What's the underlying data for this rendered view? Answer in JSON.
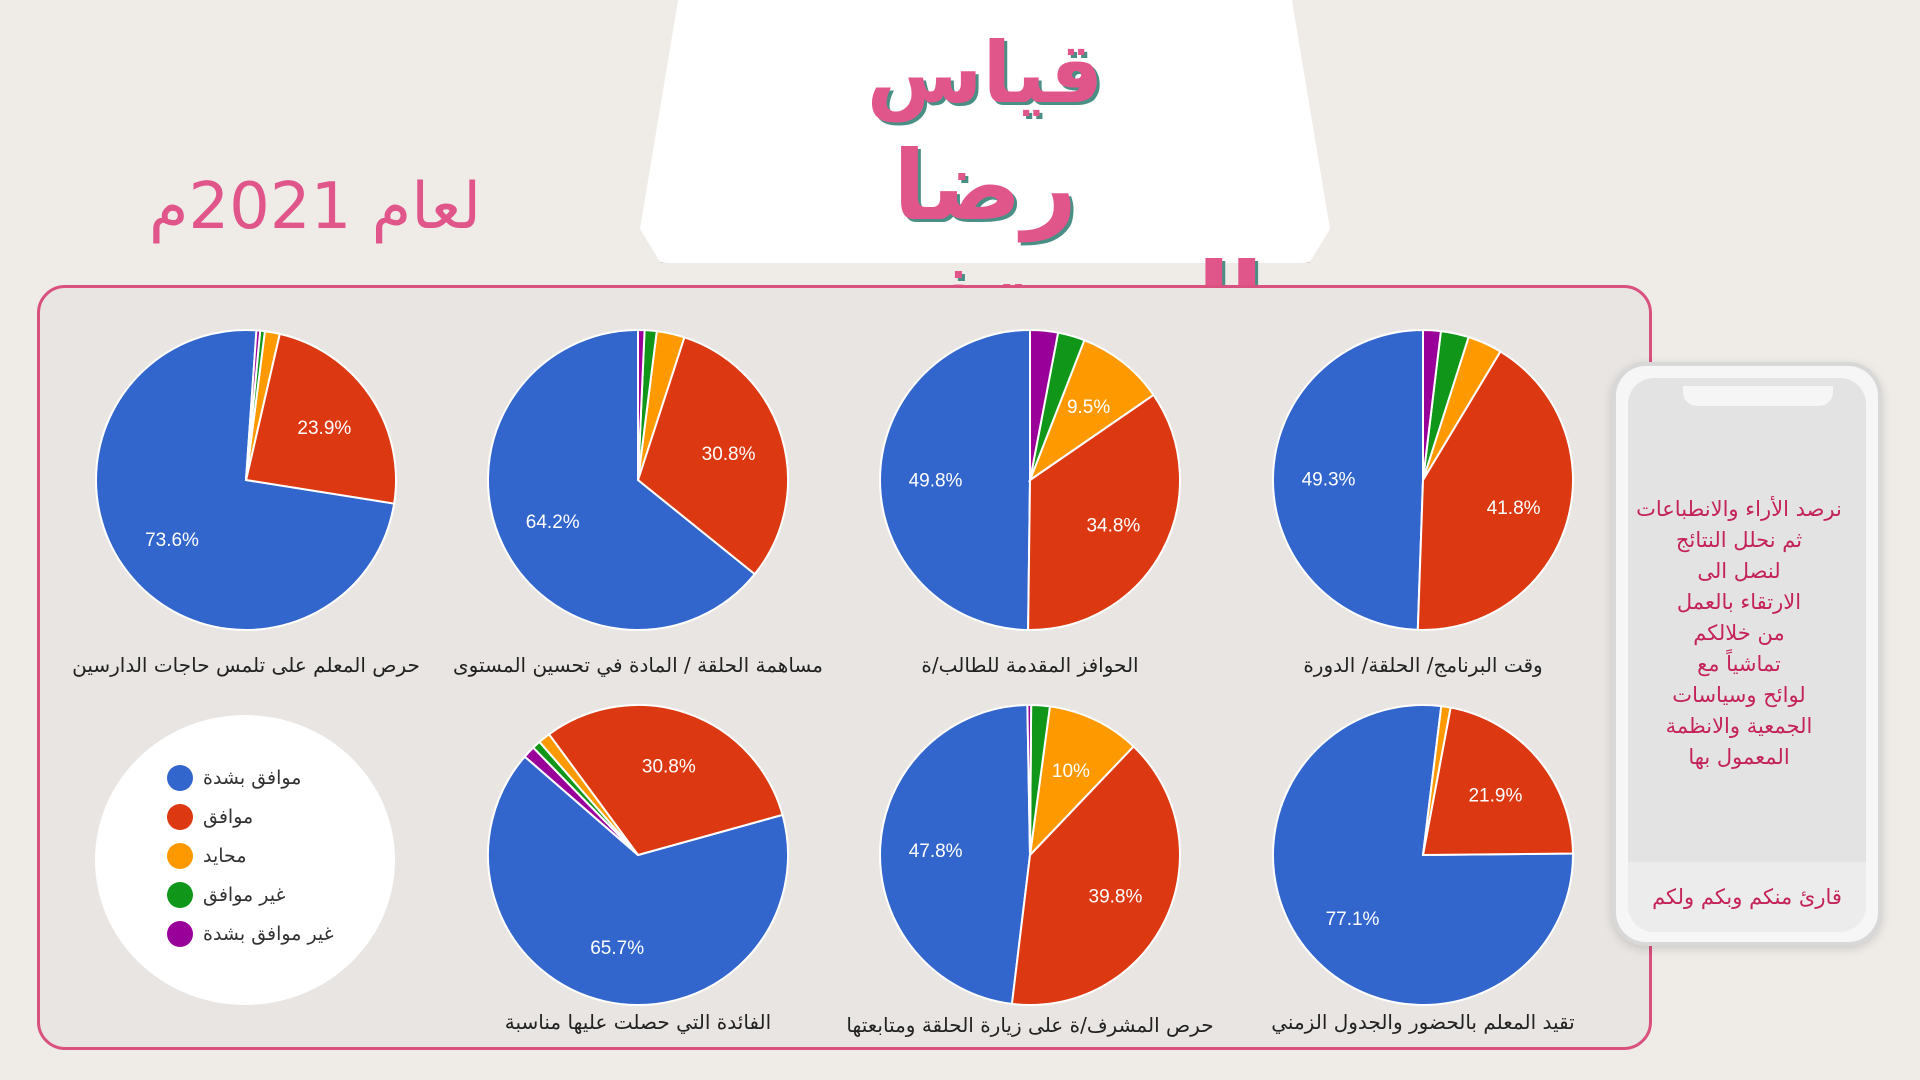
{
  "title": {
    "line1": "قياس",
    "line2": "رضا المستفيدين",
    "year": "لعام 2021م"
  },
  "phone": {
    "lines": [
      "نرصد الأراء والانطباعات",
      "ثم نحلل النتائج",
      "لنصل الى",
      "الارتقاء بالعمل",
      "من خلالكم",
      "تماشياً مع",
      "لوائح وسياسات",
      "الجمعية والانظمة",
      "المعمول بها"
    ],
    "bottom": "قارئ منكم وبكم ولكم"
  },
  "colors": [
    "#3366cc",
    "#dc3912",
    "#ff9900",
    "#109618",
    "#990099"
  ],
  "chart_data": {
    "type": "pie",
    "legend": [
      "موافق بشدة",
      "موافق",
      "محايد",
      "غير موافق",
      "غير موافق بشدة"
    ],
    "charts": [
      {
        "label": "وقت البرنامج/ الحلقة/ الدورة",
        "values": [
          49.3,
          41.8,
          3.7,
          3.0,
          1.9
        ]
      },
      {
        "label": "الحوافز المقدمة للطالب/ة",
        "values": [
          49.8,
          34.8,
          9.5,
          2.9,
          3.0
        ]
      },
      {
        "label": "مساهمة الحلقة / المادة في تحسين المستوى",
        "values": [
          64.2,
          30.8,
          3.0,
          1.3,
          0.7
        ]
      },
      {
        "label": "حرص المعلم على تلمس حاجات الدارسين",
        "values": [
          73.6,
          23.9,
          1.6,
          0.5,
          0.4
        ]
      },
      {
        "label": "تقيد المعلم بالحضور والجدول الزمني",
        "values": [
          77.1,
          21.9,
          1.0,
          0.0,
          0.0
        ]
      },
      {
        "label": "حرص المشرف/ة على زيارة الحلقة ومتابعتها",
        "values": [
          47.8,
          39.8,
          10.0,
          2.0,
          0.4
        ]
      },
      {
        "label": "الفائدة التي حصلت عليها مناسبة",
        "values": [
          65.7,
          30.8,
          1.3,
          0.9,
          1.3
        ]
      }
    ]
  }
}
